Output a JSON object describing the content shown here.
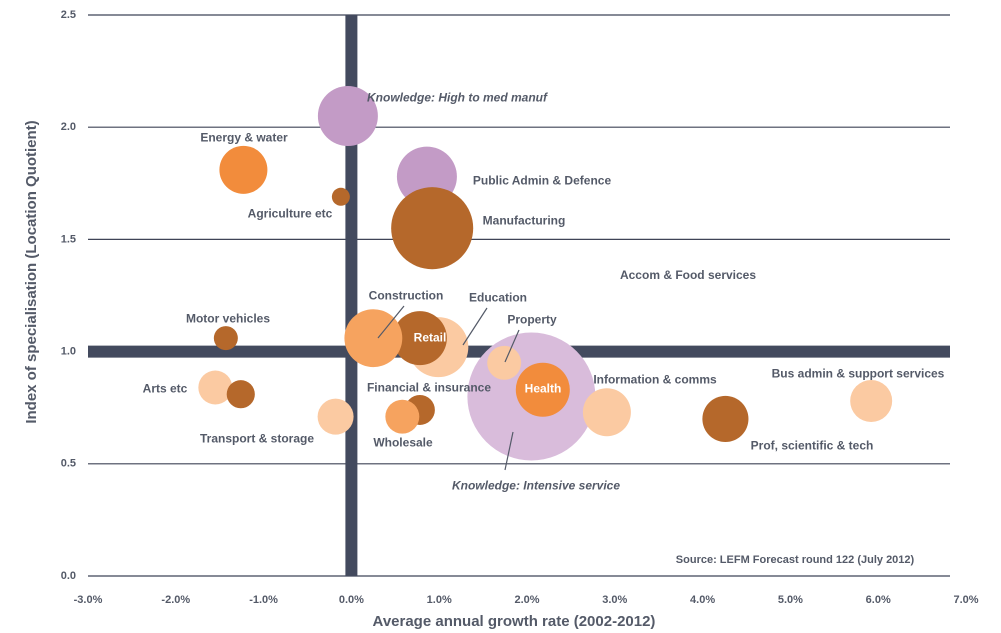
{
  "chart_data": {
    "type": "bubble",
    "x_label": "Average annual growth rate (2002-2012)",
    "y_label": "Index of specialisation (Location Quotient)",
    "source": "Source: LEFM Forecast round 122 (July 2012)",
    "annotation": "Accom & Food services",
    "xlim": [
      -3,
      7
    ],
    "ylim": [
      0,
      2.5
    ],
    "xticks": [
      {
        "value": -3,
        "label": "-3.0%"
      },
      {
        "value": -2,
        "label": "-2.0%"
      },
      {
        "value": -1,
        "label": "-1.0%"
      },
      {
        "value": 0,
        "label": "0.0%"
      },
      {
        "value": 1,
        "label": "1.0%"
      },
      {
        "value": 2,
        "label": "2.0%"
      },
      {
        "value": 3,
        "label": "3.0%"
      },
      {
        "value": 4,
        "label": "4.0%"
      },
      {
        "value": 5,
        "label": "5.0%"
      },
      {
        "value": 6,
        "label": "6.0%"
      },
      {
        "value": 7,
        "label": "7.0%"
      }
    ],
    "yticks": [
      {
        "value": 0,
        "label": "0.0"
      },
      {
        "value": 0.5,
        "label": "0.5"
      },
      {
        "value": 1,
        "label": "1.0"
      },
      {
        "value": 1.5,
        "label": "1.5"
      },
      {
        "value": 2,
        "label": "2.0"
      },
      {
        "value": 2.5,
        "label": "2.5"
      }
    ],
    "grid": true,
    "reference_lines": {
      "x": 0,
      "y": 1
    },
    "points": [
      {
        "name": "Knowledge: Intensive service",
        "x": 2.05,
        "y": 0.8,
        "size": 455,
        "color": "#d9bcdb"
      },
      {
        "name": "Education",
        "x": 0.99,
        "y": 1.02,
        "size": 100,
        "color": "#fbcaa2"
      },
      {
        "name": "Retail",
        "x": 0.78,
        "y": 1.06,
        "size": 81,
        "color": "#b5682b"
      },
      {
        "name": "Construction",
        "x": 0.25,
        "y": 1.06,
        "size": 93,
        "color": "#f6a35f"
      },
      {
        "name": "Property",
        "x": 1.74,
        "y": 0.95,
        "size": 32,
        "color": "#fbcaa2"
      },
      {
        "name": "Health",
        "x": 2.18,
        "y": 0.83,
        "size": 81,
        "color": "#f28c3c"
      },
      {
        "name": "Knowledge: High to med manuf",
        "x": -0.04,
        "y": 2.05,
        "size": 100,
        "color": "#c39bc6"
      },
      {
        "name": "Energy & water",
        "x": -1.23,
        "y": 1.81,
        "size": 64,
        "color": "#f28c3c"
      },
      {
        "name": "Agriculture etc",
        "x": -0.12,
        "y": 1.69,
        "size": 9,
        "color": "#b5682b"
      },
      {
        "name": "Public Admin & Defence",
        "x": 0.86,
        "y": 1.78,
        "size": 100,
        "color": "#c39bc6"
      },
      {
        "name": "Manufacturing",
        "x": 0.92,
        "y": 1.55,
        "size": 187,
        "color": "#b5682b"
      },
      {
        "name": "Motor vehicles",
        "x": -1.43,
        "y": 1.06,
        "size": 16,
        "color": "#b5682b"
      },
      {
        "name": "Information & comms",
        "x": 2.91,
        "y": 0.73,
        "size": 64,
        "color": "#fbcaa2"
      },
      {
        "name": "Bus admin & support services",
        "x": 5.92,
        "y": 0.78,
        "size": 49,
        "color": "#fbcaa2"
      },
      {
        "name": "Prof, scientific & tech",
        "x": 4.26,
        "y": 0.7,
        "size": 59,
        "color": "#b5682b"
      },
      {
        "name": "Arts etc",
        "x": -1.55,
        "y": 0.84,
        "size": 32,
        "color": "#fbcaa2"
      },
      {
        "x": -1.26,
        "y": 0.81,
        "size": 22,
        "color": "#b5682b"
      },
      {
        "name": "Transport & storage",
        "x": -0.18,
        "y": 0.71,
        "size": 36,
        "color": "#fbcaa2"
      },
      {
        "name": "Financial & insurance",
        "x": 0.78,
        "y": 0.74,
        "size": 25,
        "color": "#b5682b"
      },
      {
        "name": "Wholesale",
        "x": 0.58,
        "y": 0.71,
        "size": 32,
        "color": "#f6a35f"
      }
    ]
  }
}
